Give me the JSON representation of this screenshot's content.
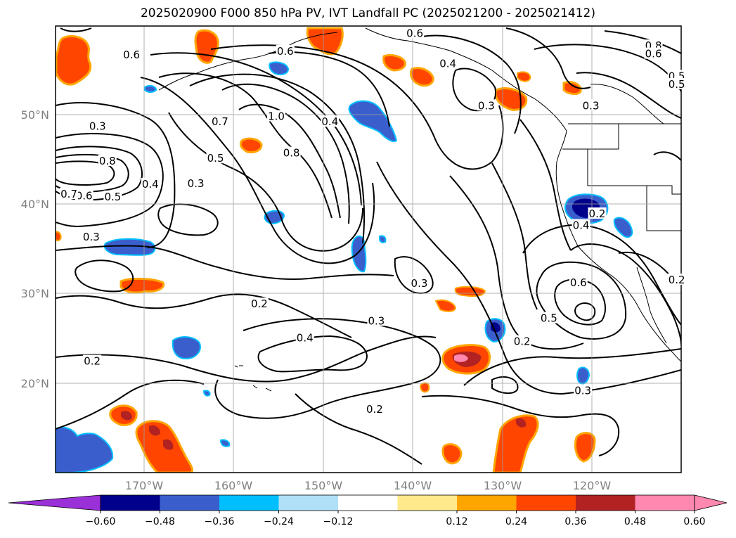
{
  "title": "2025020900 F000 850 hPa PV, IVT Landfall PC (2025021200 - 2025021412)",
  "axes": {
    "lat_ticks": [
      {
        "value": 20,
        "label": "20°N"
      },
      {
        "value": 30,
        "label": "30°N"
      },
      {
        "value": 40,
        "label": "40°N"
      },
      {
        "value": 50,
        "label": "50°N"
      }
    ],
    "lon_ticks": [
      {
        "value": -170,
        "label": "170°W"
      },
      {
        "value": -160,
        "label": "160°W"
      },
      {
        "value": -150,
        "label": "150°W"
      },
      {
        "value": -140,
        "label": "140°W"
      },
      {
        "value": -130,
        "label": "130°W"
      },
      {
        "value": -120,
        "label": "120°W"
      }
    ],
    "extent": {
      "lon": [
        -180,
        -110
      ],
      "lat": [
        10,
        60
      ]
    },
    "grid": true
  },
  "colorbar": {
    "levels": [
      -0.6,
      -0.48,
      -0.36,
      -0.24,
      -0.12,
      0.12,
      0.24,
      0.36,
      0.48,
      0.6
    ],
    "labels": [
      "−0.60",
      "−0.48",
      "−0.36",
      "−0.24",
      "−0.12",
      "0.12",
      "0.24",
      "0.36",
      "0.48",
      "0.60"
    ],
    "colors": [
      "#9a30d8",
      "#00008b",
      "#3a5fcd",
      "#00bfff",
      "#b0e0f8",
      "#ffffff",
      "#ffe98a",
      "#ffa500",
      "#ff4500",
      "#b22222",
      "#ff88b0"
    ],
    "extend": "both"
  },
  "contour_labels": [
    {
      "text": "0.3",
      "lon": -175.3,
      "lat": 48.7
    },
    {
      "text": "0.8",
      "lon": -174.2,
      "lat": 44.8
    },
    {
      "text": "0.6",
      "lon": -176.8,
      "lat": 40.9
    },
    {
      "text": "0.5",
      "lon": -173.6,
      "lat": 40.8
    },
    {
      "text": "0.7",
      "lon": -178.5,
      "lat": 41.1
    },
    {
      "text": "0.3",
      "lon": -176.0,
      "lat": 36.3
    },
    {
      "text": "0.4",
      "lon": -169.4,
      "lat": 42.2
    },
    {
      "text": "0.3",
      "lon": -164.3,
      "lat": 42.3
    },
    {
      "text": "0.7",
      "lon": -161.6,
      "lat": 49.2
    },
    {
      "text": "0.5",
      "lon": -162.1,
      "lat": 45.1
    },
    {
      "text": "1.0",
      "lon": -155.3,
      "lat": 49.8
    },
    {
      "text": "0.8",
      "lon": -153.6,
      "lat": 45.7
    },
    {
      "text": "0.4",
      "lon": -149.3,
      "lat": 49.2
    },
    {
      "text": "0.6",
      "lon": -154.3,
      "lat": 57.1
    },
    {
      "text": "0.6",
      "lon": -139.8,
      "lat": 59.1
    },
    {
      "text": "0.4",
      "lon": -136.1,
      "lat": 55.7
    },
    {
      "text": "0.3",
      "lon": -131.8,
      "lat": 51.0
    },
    {
      "text": "0.3",
      "lon": -120.1,
      "lat": 51.0
    },
    {
      "text": "0.8",
      "lon": -113.1,
      "lat": 57.7
    },
    {
      "text": "0.6",
      "lon": -113.1,
      "lat": 56.8
    },
    {
      "text": "0.5",
      "lon": -110.5,
      "lat": 54.3
    },
    {
      "text": "0.2",
      "lon": -119.4,
      "lat": 38.9
    },
    {
      "text": "0.4",
      "lon": -121.2,
      "lat": 37.6
    },
    {
      "text": "0.3",
      "lon": -139.3,
      "lat": 31.1
    },
    {
      "text": "0.6",
      "lon": -121.5,
      "lat": 31.2
    },
    {
      "text": "0.5",
      "lon": -124.8,
      "lat": 27.2
    },
    {
      "text": "0.2",
      "lon": -127.8,
      "lat": 24.6
    },
    {
      "text": "0.3",
      "lon": -121.0,
      "lat": 19.1
    },
    {
      "text": "0.2",
      "lon": -157.2,
      "lat": 28.8
    },
    {
      "text": "0.3",
      "lon": -144.1,
      "lat": 26.9
    },
    {
      "text": "0.4",
      "lon": -152.1,
      "lat": 25.0
    },
    {
      "text": "0.2",
      "lon": -175.9,
      "lat": 22.4
    },
    {
      "text": "0.2",
      "lon": -144.3,
      "lat": 17.0
    },
    {
      "text": "0.2",
      "lon": -110.5,
      "lat": 31.5
    },
    {
      "text": "0.5",
      "lon": -110.5,
      "lat": 53.4
    },
    {
      "text": "0.6",
      "lon": -171.5,
      "lat": 56.7
    }
  ]
}
